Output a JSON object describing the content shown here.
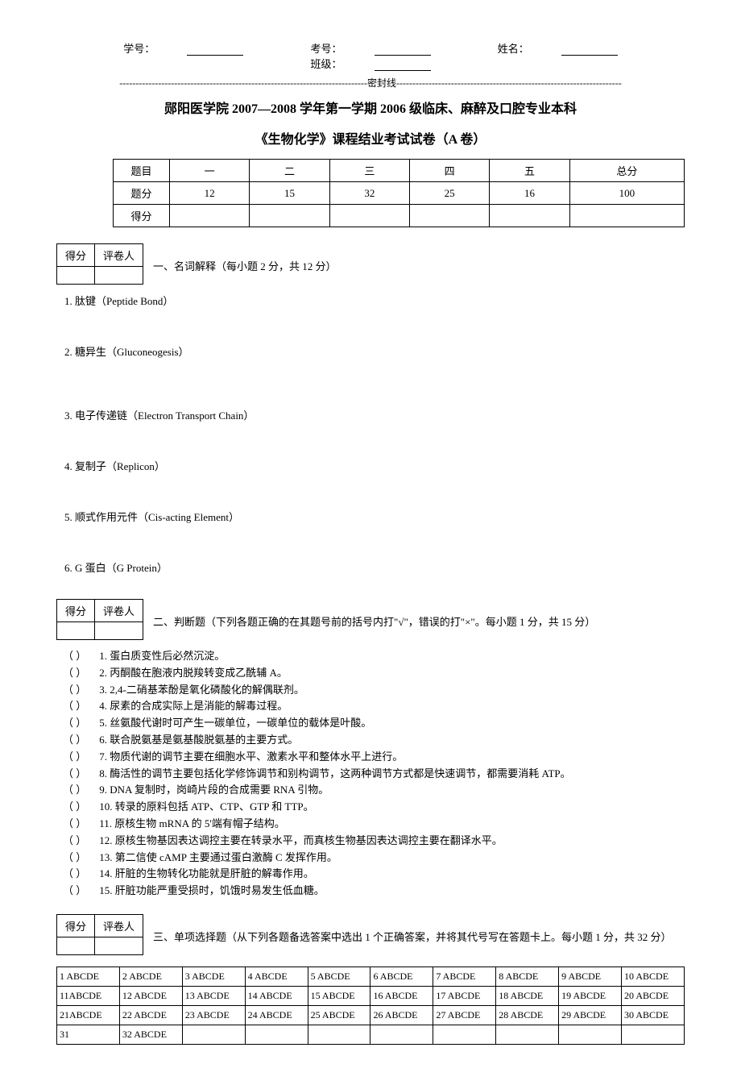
{
  "header": {
    "student_no_label": "学号：",
    "exam_no_label": "考号：",
    "name_label": "姓名：",
    "class_label": "班级：",
    "seal_line": "-----------------------------------------------------------------------------密封线----------------------------------------------------------------------"
  },
  "title1": "郧阳医学院 2007—2008 学年第一学期 2006 级临床、麻醉及口腔专业本科",
  "title2": "《生物化学》课程结业考试试卷（A 卷）",
  "score_table": {
    "row1": [
      "题目",
      "一",
      "二",
      "三",
      "四",
      "五",
      "总分"
    ],
    "row2": [
      "题分",
      "12",
      "15",
      "32",
      "25",
      "16",
      "100"
    ],
    "row3": [
      "得分",
      "",
      "",
      "",
      "",
      "",
      ""
    ]
  },
  "section_box": {
    "col1": "得分",
    "col2": "评卷人"
  },
  "section1": {
    "heading": "一、名词解释（每小题 2 分，共 12 分）",
    "items": [
      "1.  肽键（Peptide Bond）",
      "2.  糖异生（Gluconeogesis）",
      "3.  电子传递链（Electron Transport Chain）",
      "4.  复制子（Replicon）",
      "5.  顺式作用元件（Cis-acting Element）",
      "6.  G 蛋白（G Protein）"
    ]
  },
  "section2": {
    "heading": "二、判断题（下列各题正确的在其题号前的括号内打\"√\"，错误的打\"×\"。每小题 1 分，共 15 分）",
    "paren": "（       ）",
    "items": [
      "1.  蛋白质变性后必然沉淀。",
      "2.  丙酮酸在胞液内脱羧转变成乙酰辅 A。",
      "3. 2,4-二硝基苯酚是氧化磷酸化的解偶联剂。",
      "4.  尿素的合成实际上是消能的解毒过程。",
      "5.  丝氨酸代谢时可产生一碳单位，一碳单位的载体是叶酸。",
      "6.  联合脱氨基是氨基酸脱氨基的主要方式。",
      "7.  物质代谢的调节主要在细胞水平、激素水平和整体水平上进行。",
      "8.  酶活性的调节主要包括化学修饰调节和别构调节，这两种调节方式都是快速调节，都需要消耗 ATP。",
      "9.   DNA 复制时，岗崎片段的合成需要 RNA 引物。",
      "10.  转录的原料包括 ATP、CTP、GTP 和 TTP。",
      "11.  原核生物 mRNA  的 5'端有帽子结构。",
      "12.  原核生物基因表达调控主要在转录水平，而真核生物基因表达调控主要在翻译水平。",
      "13.  第二信使 cAMP 主要通过蛋白激酶 C 发挥作用。",
      "14.  肝脏的生物转化功能就是肝脏的解毒作用。",
      "15.  肝脏功能严重受损时，饥饿时易发生低血糖。"
    ]
  },
  "section3": {
    "heading": "三、单项选择题（从下列各题备选答案中选出 1 个正确答案，并将其代号写在答题卡上。每小题 1 分，共 32 分）",
    "answer_rows": [
      [
        " 1 ABCDE",
        " 2 ABCDE",
        " 3 ABCDE",
        " 4 ABCDE",
        " 5 ABCDE",
        " 6 ABCDE",
        " 7 ABCDE",
        " 8 ABCDE",
        " 9 ABCDE",
        " 10 ABCDE"
      ],
      [
        "11ABCDE",
        " 12 ABCDE",
        " 13 ABCDE",
        " 14 ABCDE",
        " 15 ABCDE",
        " 16 ABCDE",
        " 17 ABCDE",
        " 18 ABCDE",
        " 19 ABCDE",
        " 20 ABCDE"
      ],
      [
        "21ABCDE",
        " 22 ABCDE",
        " 23 ABCDE",
        " 24 ABCDE",
        " 25 ABCDE",
        " 26 ABCDE",
        " 27 ABCDE",
        " 28 ABCDE",
        " 29 ABCDE",
        " 30 ABCDE"
      ],
      [
        "31",
        " 32 ABCDE",
        "",
        "",
        "",
        "",
        "",
        "",
        "",
        ""
      ]
    ]
  }
}
